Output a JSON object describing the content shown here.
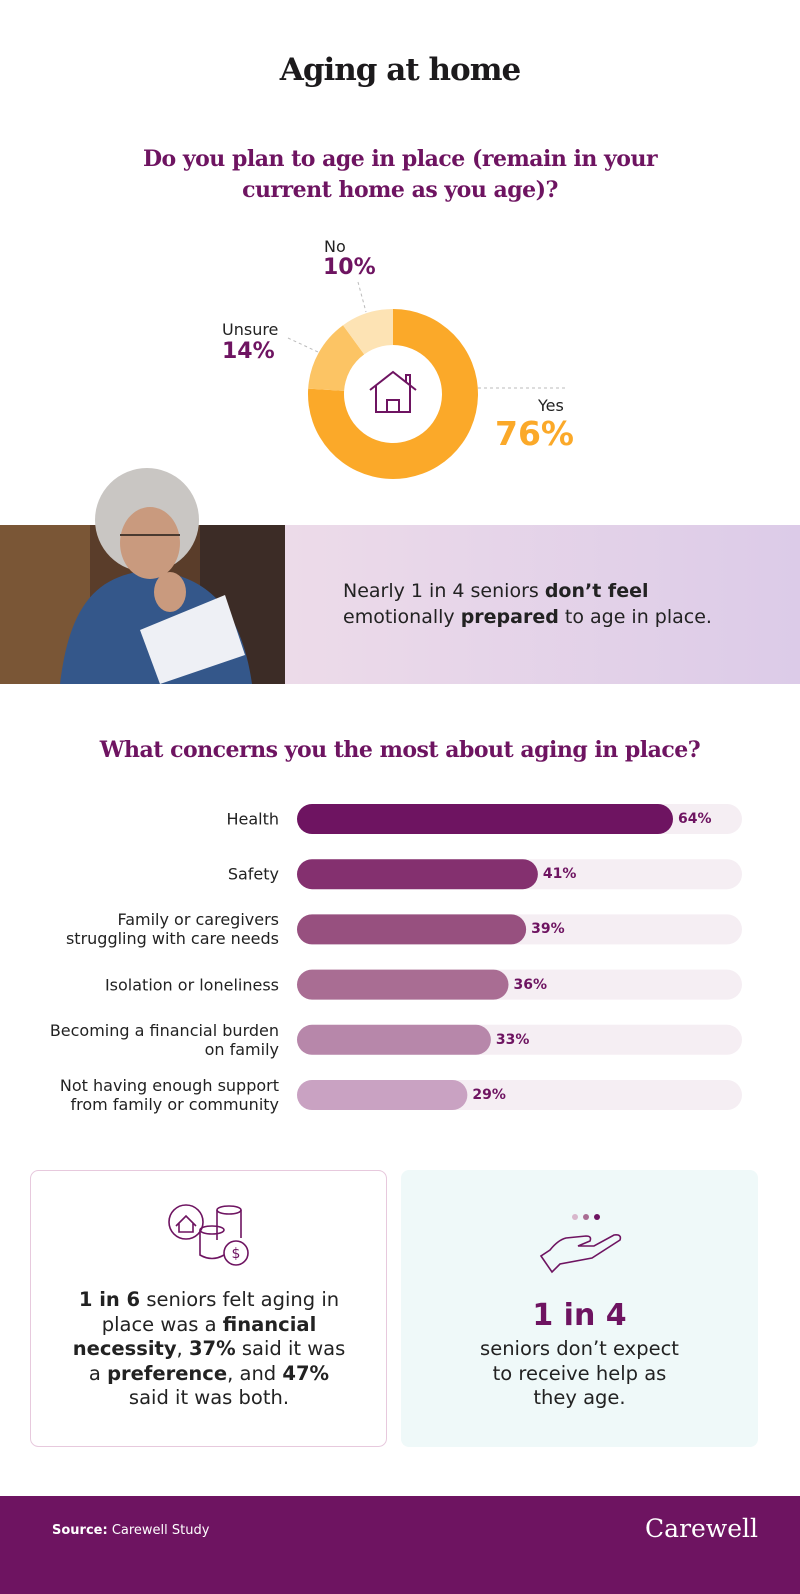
{
  "header": {
    "title": "Aging at home"
  },
  "chart_data": [
    {
      "type": "donut",
      "title": "Do you plan to age in place (remain in your current home as you age)?",
      "categories": [
        "Yes",
        "Unsure",
        "No"
      ],
      "values": [
        76,
        14,
        10
      ],
      "value_labels": [
        "76%",
        "14%",
        "10%"
      ],
      "colors": [
        "#fba929",
        "#fcc464",
        "#fde3b4"
      ]
    },
    {
      "type": "bar",
      "title": "What concerns you the most about aging in place?",
      "categories": [
        "Health",
        "Safety",
        "Family or caregivers\nstruggling with care needs",
        "Isolation or loneliness",
        "Becoming a financial burden\non family",
        "Not having enough support\nfrom family or community"
      ],
      "values": [
        64,
        41,
        39,
        36,
        33,
        29
      ],
      "value_labels": [
        "64%",
        "41%",
        "39%",
        "36%",
        "33%",
        "29%"
      ],
      "colors": [
        "#6e1461",
        "#84306f",
        "#97507f",
        "#a96d93",
        "#b787aa",
        "#c9a2c2"
      ]
    }
  ],
  "callout": {
    "segments": [
      {
        "text": "Nearly 1 in 4 seniors ",
        "bold": false
      },
      {
        "text": "don’t feel",
        "bold": true
      },
      {
        "text": " emotionally ",
        "bold": false
      },
      {
        "text": "prepared",
        "bold": true
      },
      {
        "text": " to age in place.",
        "bold": false
      }
    ]
  },
  "stats": [
    {
      "segments": [
        {
          "text": "1 in 6",
          "bold": true
        },
        {
          "text": " seniors felt aging in place was a ",
          "bold": false
        },
        {
          "text": "financial necessity",
          "bold": true
        },
        {
          "text": ", ",
          "bold": false
        },
        {
          "text": "37%",
          "bold": true
        },
        {
          "text": " said it was a ",
          "bold": false
        },
        {
          "text": "preference",
          "bold": true
        },
        {
          "text": ", and ",
          "bold": false
        },
        {
          "text": "47%",
          "bold": true
        },
        {
          "text": " said it was both.",
          "bold": false
        }
      ]
    },
    {
      "headline": "1 in 4",
      "text": "seniors don’t expect\nto receive help as\nthey age."
    }
  ],
  "footer": {
    "source_label": "Source:",
    "source": "Carewell Study",
    "brand": "Carewell"
  }
}
